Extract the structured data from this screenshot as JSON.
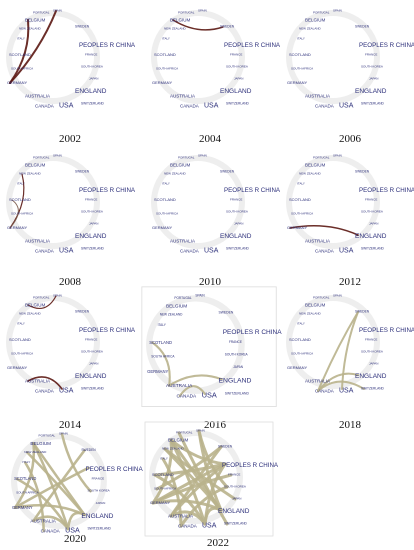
{
  "nodes": [
    {
      "label": "PORTUGAL"
    },
    {
      "label": "SPAIN"
    },
    {
      "label": "BELGIUM"
    },
    {
      "label": "SWEDEN"
    },
    {
      "label": "NEW ZEALAND"
    },
    {
      "label": "ITALY"
    },
    {
      "label": "PEOPLES R CHINA"
    },
    {
      "label": "FRANCE"
    },
    {
      "label": "SCOTLAND"
    },
    {
      "label": "SOUTH AFRICA"
    },
    {
      "label": "SOUTH KOREA"
    },
    {
      "label": "JAPAN"
    },
    {
      "label": "GERMANY"
    },
    {
      "label": "ENGLAND"
    },
    {
      "label": "AUSTRALIA"
    },
    {
      "label": "SWITZERLAND"
    },
    {
      "label": "CANADA"
    },
    {
      "label": "USA"
    }
  ],
  "panels": [
    {
      "year": "2002"
    },
    {
      "year": "2004"
    },
    {
      "year": "2006"
    },
    {
      "year": "2008"
    },
    {
      "year": "2010"
    },
    {
      "year": "2012"
    },
    {
      "year": "2014"
    },
    {
      "year": "2016"
    },
    {
      "year": "2018"
    },
    {
      "year": "2020"
    },
    {
      "year": "2022"
    }
  ]
}
